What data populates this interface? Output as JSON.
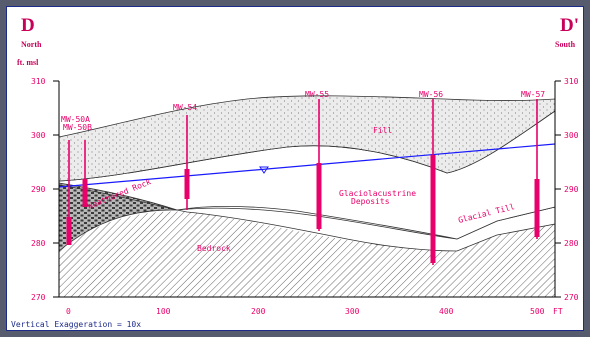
{
  "section": {
    "left_letter": "D",
    "right_letter": "D'",
    "left_direction": "North",
    "right_direction": "South",
    "elevation_unit": "ft. msl",
    "distance_unit": "FT",
    "footnote": "Vertical Exaggeration = 10x"
  },
  "y_ticks": [
    "310",
    "300",
    "290",
    "280",
    "270"
  ],
  "x_ticks": [
    "0",
    "100",
    "200",
    "300",
    "400",
    "500"
  ],
  "wells": [
    {
      "id": "MW-50A",
      "x_ft": 2
    },
    {
      "id": "MW-50B",
      "x_ft": 18
    },
    {
      "id": "MW-54",
      "x_ft": 130
    },
    {
      "id": "MW-55",
      "x_ft": 275
    },
    {
      "id": "MW-56",
      "x_ft": 390
    },
    {
      "id": "MW-57",
      "x_ft": 498
    }
  ],
  "units": {
    "fill": "Fill",
    "glacio1": "Glaciolacustrine",
    "glacio2": "Deposits",
    "weathered": "Weathered Rock",
    "bedrock": "Bedrock",
    "glacial_till": "Glacial Till"
  },
  "colors": {
    "accent": "#e8006b",
    "water_table": "#1a1aff",
    "frame": "#1c2a8a"
  }
}
